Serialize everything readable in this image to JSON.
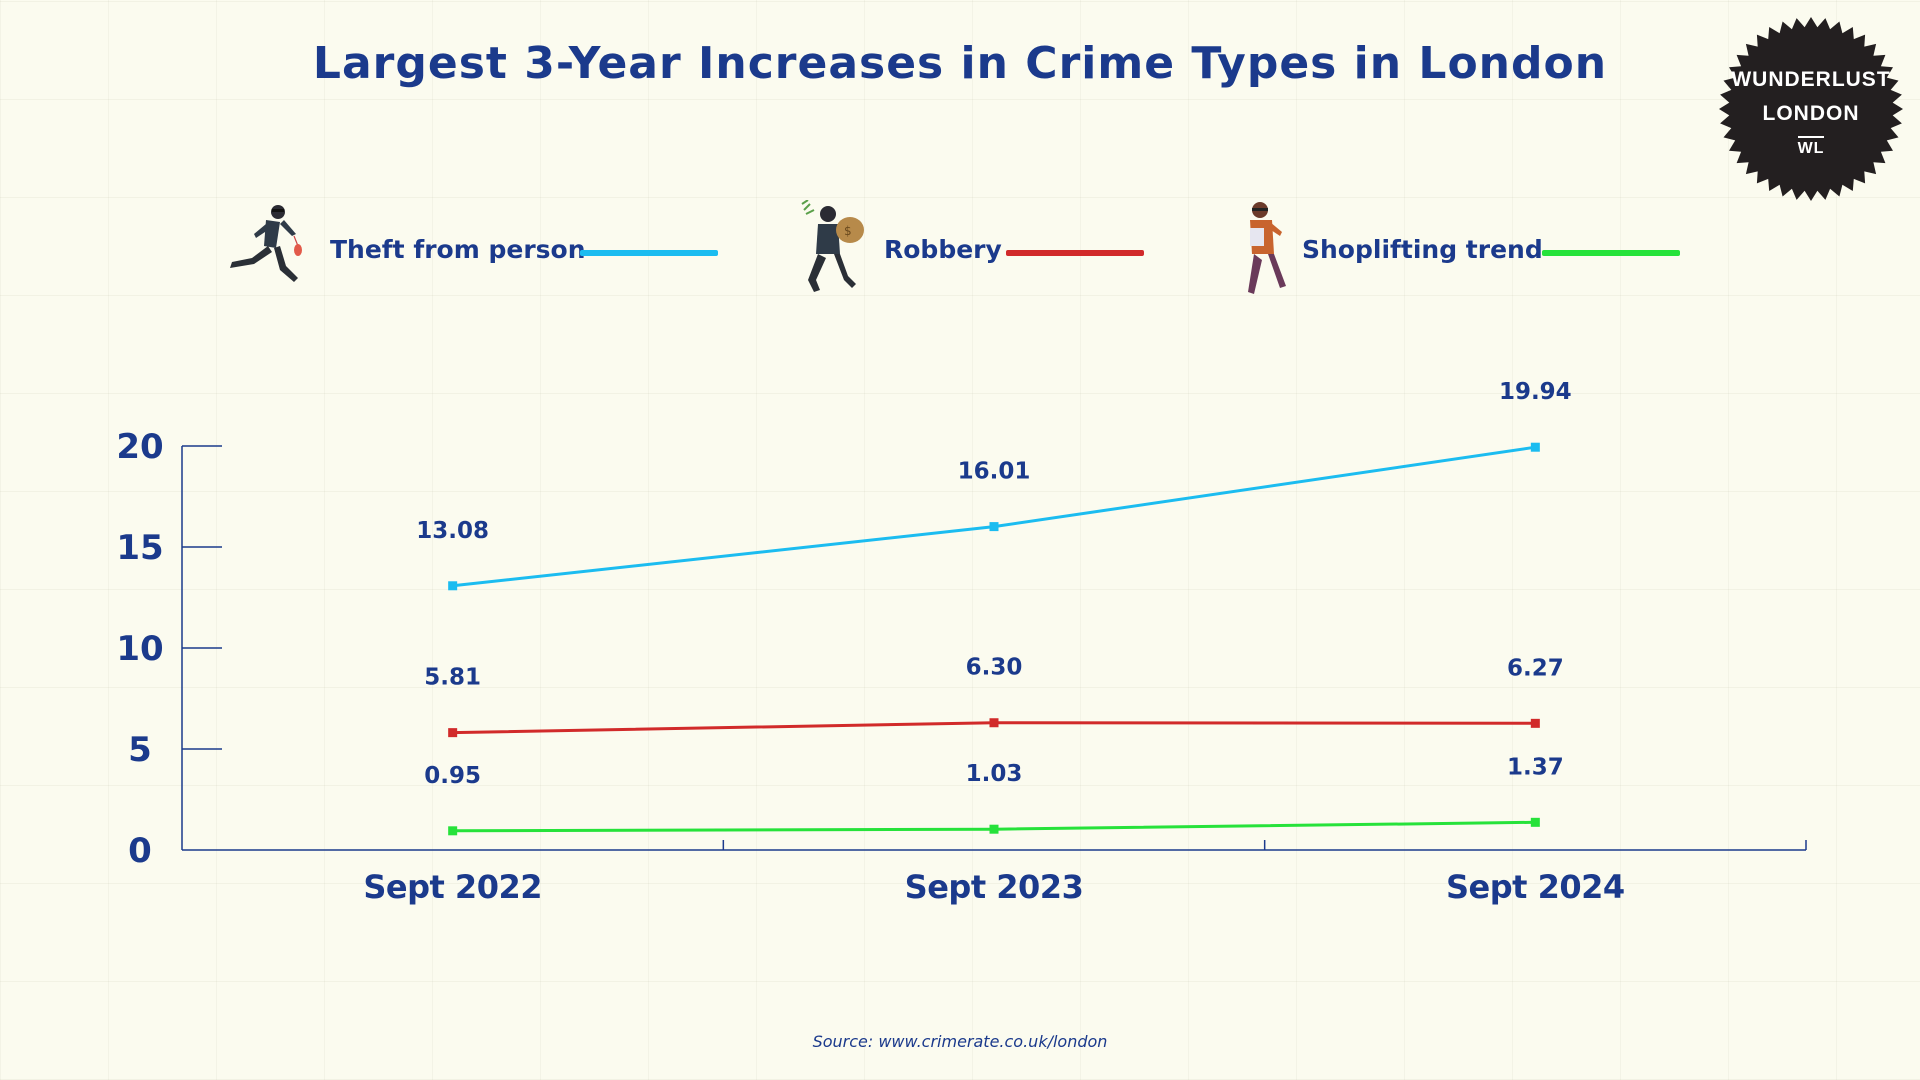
{
  "colors": {
    "title": "#1b3a8c",
    "axis": "#1b3a8c",
    "background": "#fbfbef"
  },
  "badge": {
    "line1": "WUNDERLUST",
    "line2": "LONDON",
    "monogram": "WL"
  },
  "source": "Source: www.crimerate.co.uk/london",
  "chart_data": {
    "type": "line",
    "title": "Largest 3-Year Increases in Crime Types in London",
    "xlabel": "",
    "ylabel": "",
    "categories": [
      "Sept 2022",
      "Sept 2023",
      "Sept 2024"
    ],
    "yticks": [
      "0",
      "5",
      "10",
      "15",
      "20"
    ],
    "ylim": [
      0,
      20
    ],
    "grid": false,
    "legend_position": "top",
    "series": [
      {
        "name": "Theft from person",
        "color": "#1bbcf0",
        "icon": "running-thief-icon",
        "values": [
          13.08,
          16.01,
          19.94
        ],
        "labels": [
          "13.08",
          "16.01",
          "19.94"
        ]
      },
      {
        "name": "Robbery",
        "color": "#d12a2a",
        "icon": "robber-with-money-bag-icon",
        "values": [
          5.81,
          6.3,
          6.27
        ],
        "labels": [
          "5.81",
          "6.30",
          "6.27"
        ]
      },
      {
        "name": "Shoplifting trend",
        "color": "#26e23a",
        "icon": "shoplifter-icon",
        "values": [
          0.95,
          1.03,
          1.37
        ],
        "labels": [
          "0.95",
          "1.03",
          "1.37"
        ]
      }
    ]
  }
}
